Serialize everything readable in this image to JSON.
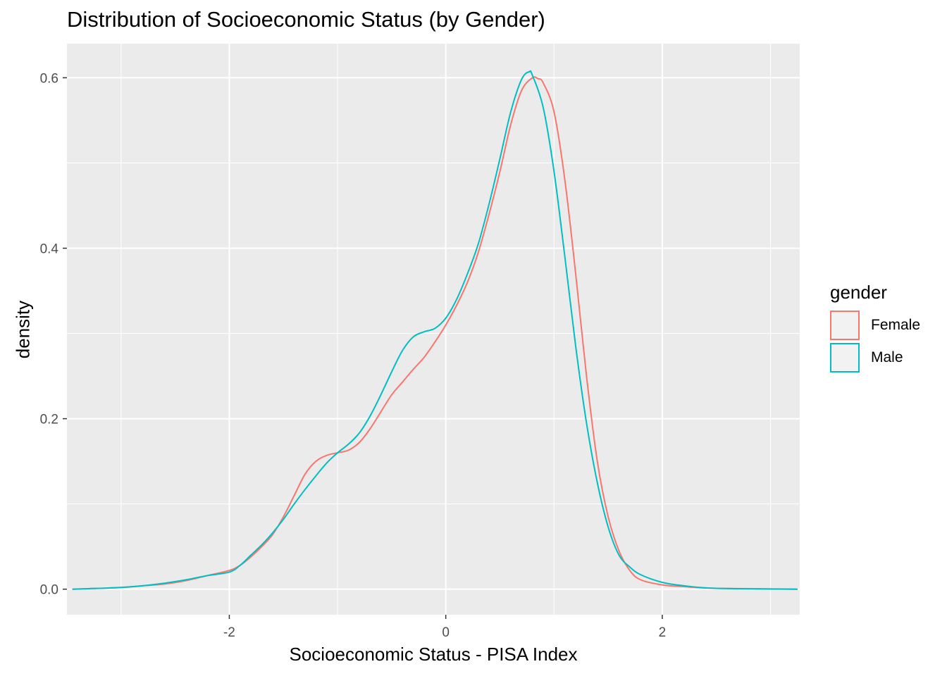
{
  "chart_data": {
    "type": "line",
    "title": "Distribution of Socioeconomic Status (by Gender)",
    "xlabel": "Socioeconomic Status - PISA Index",
    "ylabel": "density",
    "xlim": [
      -3.5,
      3.27
    ],
    "ylim": [
      -0.03,
      0.64
    ],
    "x_ticks": [
      -2,
      0,
      2
    ],
    "x_tick_labels": [
      "-2",
      "0",
      "2"
    ],
    "y_ticks": [
      0.0,
      0.2,
      0.4,
      0.6
    ],
    "y_tick_labels": [
      "0.0",
      "0.2",
      "0.4",
      "0.6"
    ],
    "grid": true,
    "legend": {
      "title": "gender",
      "position": "right"
    },
    "series": [
      {
        "name": "Female",
        "color": "#F8766D",
        "points": [
          [
            -3.45,
            0.0
          ],
          [
            -3.2,
            0.001
          ],
          [
            -3.0,
            0.002
          ],
          [
            -2.8,
            0.004
          ],
          [
            -2.6,
            0.006
          ],
          [
            -2.4,
            0.01
          ],
          [
            -2.2,
            0.016
          ],
          [
            -2.0,
            0.022
          ],
          [
            -1.9,
            0.028
          ],
          [
            -1.8,
            0.038
          ],
          [
            -1.7,
            0.05
          ],
          [
            -1.6,
            0.064
          ],
          [
            -1.5,
            0.085
          ],
          [
            -1.4,
            0.11
          ],
          [
            -1.3,
            0.135
          ],
          [
            -1.2,
            0.15
          ],
          [
            -1.1,
            0.157
          ],
          [
            -1.0,
            0.16
          ],
          [
            -0.9,
            0.163
          ],
          [
            -0.8,
            0.172
          ],
          [
            -0.7,
            0.188
          ],
          [
            -0.6,
            0.208
          ],
          [
            -0.5,
            0.228
          ],
          [
            -0.4,
            0.243
          ],
          [
            -0.3,
            0.258
          ],
          [
            -0.2,
            0.272
          ],
          [
            -0.1,
            0.29
          ],
          [
            0.0,
            0.31
          ],
          [
            0.1,
            0.333
          ],
          [
            0.2,
            0.36
          ],
          [
            0.3,
            0.395
          ],
          [
            0.4,
            0.44
          ],
          [
            0.5,
            0.49
          ],
          [
            0.6,
            0.545
          ],
          [
            0.7,
            0.585
          ],
          [
            0.8,
            0.6
          ],
          [
            0.85,
            0.599
          ],
          [
            0.9,
            0.594
          ],
          [
            1.0,
            0.56
          ],
          [
            1.1,
            0.48
          ],
          [
            1.2,
            0.37
          ],
          [
            1.3,
            0.25
          ],
          [
            1.4,
            0.15
          ],
          [
            1.5,
            0.085
          ],
          [
            1.6,
            0.045
          ],
          [
            1.7,
            0.022
          ],
          [
            1.8,
            0.011
          ],
          [
            2.0,
            0.005
          ],
          [
            2.2,
            0.003
          ],
          [
            2.5,
            0.001
          ],
          [
            3.25,
            0.0
          ]
        ]
      },
      {
        "name": "Male",
        "color": "#00BFC4",
        "points": [
          [
            -3.45,
            0.0
          ],
          [
            -3.2,
            0.001
          ],
          [
            -3.0,
            0.002
          ],
          [
            -2.8,
            0.004
          ],
          [
            -2.6,
            0.007
          ],
          [
            -2.4,
            0.011
          ],
          [
            -2.2,
            0.016
          ],
          [
            -2.0,
            0.02
          ],
          [
            -1.9,
            0.028
          ],
          [
            -1.8,
            0.04
          ],
          [
            -1.7,
            0.052
          ],
          [
            -1.6,
            0.066
          ],
          [
            -1.5,
            0.082
          ],
          [
            -1.4,
            0.1
          ],
          [
            -1.3,
            0.117
          ],
          [
            -1.2,
            0.133
          ],
          [
            -1.1,
            0.148
          ],
          [
            -1.0,
            0.16
          ],
          [
            -0.9,
            0.17
          ],
          [
            -0.8,
            0.183
          ],
          [
            -0.7,
            0.203
          ],
          [
            -0.6,
            0.228
          ],
          [
            -0.5,
            0.255
          ],
          [
            -0.4,
            0.28
          ],
          [
            -0.3,
            0.296
          ],
          [
            -0.2,
            0.302
          ],
          [
            -0.1,
            0.306
          ],
          [
            0.0,
            0.318
          ],
          [
            0.1,
            0.34
          ],
          [
            0.2,
            0.37
          ],
          [
            0.3,
            0.405
          ],
          [
            0.4,
            0.452
          ],
          [
            0.5,
            0.505
          ],
          [
            0.6,
            0.56
          ],
          [
            0.7,
            0.598
          ],
          [
            0.77,
            0.607
          ],
          [
            0.8,
            0.603
          ],
          [
            0.9,
            0.565
          ],
          [
            1.0,
            0.49
          ],
          [
            1.1,
            0.39
          ],
          [
            1.2,
            0.285
          ],
          [
            1.3,
            0.195
          ],
          [
            1.4,
            0.125
          ],
          [
            1.5,
            0.073
          ],
          [
            1.6,
            0.04
          ],
          [
            1.7,
            0.026
          ],
          [
            1.8,
            0.017
          ],
          [
            2.0,
            0.008
          ],
          [
            2.2,
            0.004
          ],
          [
            2.5,
            0.001
          ],
          [
            3.25,
            0.0
          ]
        ]
      }
    ]
  }
}
